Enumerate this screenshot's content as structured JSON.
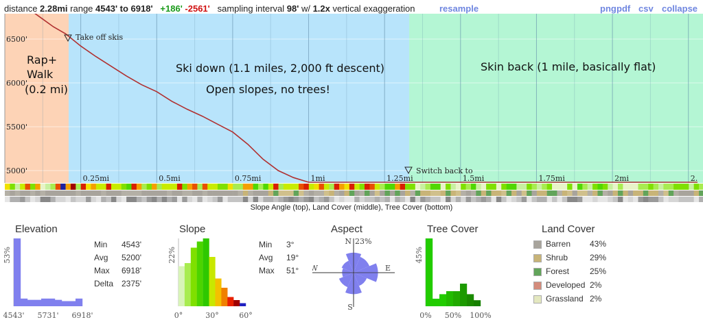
{
  "header": {
    "distance_label": "distance",
    "distance": "2.28mi",
    "range_label": "range",
    "range": "4543' to 6918'",
    "gain": "+186'",
    "loss": "-2561'",
    "sampling_label": "sampling interval",
    "sampling": "98'",
    "w_label": "w/",
    "exaggeration": "1.2x",
    "exaggeration_label": "vertical exaggeration",
    "resample": "resample",
    "png": "png",
    "pdf": "pdf",
    "csv": "csv",
    "collapse": "collapse"
  },
  "annotations": {
    "rap_line1": "Rap+",
    "rap_line2": "Walk",
    "rap_line3": "(0.2 mi)",
    "ski_line1": "Ski down (1.1 miles, 2,000 ft descent)",
    "ski_line2": "Open slopes, no trees!",
    "skin": "Skin back (1 mile, basically flat)",
    "marker1": "Take off skis",
    "marker2": "Switch back to"
  },
  "caption": "Slope Angle (top), Land Cover (middle), Tree Cover (bottom)",
  "colors": {
    "rap_zone": "#fdd3b6",
    "ski_zone": "#b8e4fb",
    "skin_zone": "#b4f6d4",
    "profile_line": "#b03030",
    "hist_blue": "#8080ee",
    "tree_green": "#22cc00"
  },
  "chart_data": [
    {
      "type": "line",
      "xlabel": "",
      "ylabel": "",
      "x_ticks": [
        "0.25mi",
        "0.5mi",
        "0.75mi",
        "1mi",
        "1.25mi",
        "1.5mi",
        "1.75mi",
        "2mi",
        "2."
      ],
      "y_ticks": [
        "6500'",
        "6000'",
        "5500'",
        "5000'"
      ],
      "ylim": [
        4543,
        6918
      ],
      "xlim": [
        0,
        2.28
      ],
      "series": [
        {
          "x": [
            0,
            0.04,
            0.08,
            0.12,
            0.16,
            0.2,
            0.25,
            0.3,
            0.35,
            0.4,
            0.45,
            0.5,
            0.55,
            0.6,
            0.65,
            0.7,
            0.75,
            0.8,
            0.85,
            0.9,
            0.95,
            1.0,
            1.05,
            1.1,
            1.15,
            1.2,
            1.25,
            1.3,
            1.35,
            1.4,
            1.45,
            1.5,
            1.55,
            1.6,
            1.65,
            1.7,
            1.75,
            1.8,
            1.85,
            1.9,
            1.95,
            2.0,
            2.05,
            2.1,
            2.15,
            2.2,
            2.25,
            2.28
          ],
          "values": [
            6918,
            6905,
            6840,
            6740,
            6640,
            6560,
            6420,
            6300,
            6190,
            6080,
            5980,
            5900,
            5790,
            5700,
            5620,
            5530,
            5440,
            5300,
            5130,
            5000,
            4920,
            4850,
            4800,
            4760,
            4720,
            4690,
            4670,
            4690,
            4700,
            4640,
            4590,
            4560,
            4570,
            4590,
            4630,
            4670,
            4690,
            4690,
            4675,
            4665,
            4660,
            4650,
            4620,
            4600,
            4590,
            4580,
            4560,
            4543
          ]
        }
      ]
    },
    {
      "type": "bar",
      "title": "Elevation",
      "ylabel": "53%",
      "x_ticks": [
        "4543'",
        "5731'",
        "6918'"
      ],
      "values": [
        53,
        6,
        5,
        5,
        6,
        6,
        5,
        4,
        4,
        6
      ]
    },
    {
      "type": "bar",
      "title": "Slope",
      "ylabel": "22%",
      "x_ticks": [
        "0°",
        "30°",
        "60°"
      ],
      "values": [
        13,
        14,
        19,
        21,
        22,
        16,
        9,
        6,
        3,
        2,
        1
      ]
    },
    {
      "type": "radar",
      "title": "Aspect",
      "max_label": "23%",
      "directions": [
        "N",
        "NE",
        "E",
        "SE",
        "S",
        "SW",
        "W",
        "NW"
      ],
      "values": [
        14,
        12,
        17,
        10,
        15,
        11,
        8,
        9
      ]
    },
    {
      "type": "bar",
      "title": "Tree Cover",
      "ylabel": "45%",
      "x_ticks": [
        "0%",
        "50%",
        "100%"
      ],
      "values": [
        45,
        5,
        8,
        10,
        10,
        15,
        8,
        4
      ]
    }
  ],
  "elevation_stats": [
    {
      "label": "Min",
      "value": "4543'"
    },
    {
      "label": "Avg",
      "value": "5200'"
    },
    {
      "label": "Max",
      "value": "6918'"
    },
    {
      "label": "Delta",
      "value": "2375'"
    }
  ],
  "slope_stats": [
    {
      "label": "Min",
      "value": "3°"
    },
    {
      "label": "Avg",
      "value": "19°"
    },
    {
      "label": "Max",
      "value": "51°"
    }
  ],
  "land_cover": {
    "title": "Land Cover",
    "items": [
      {
        "name": "Barren",
        "pct": "43%",
        "color": "#a8a49c"
      },
      {
        "name": "Shrub",
        "pct": "29%",
        "color": "#c8b478"
      },
      {
        "name": "Forest",
        "pct": "25%",
        "color": "#62a45a"
      },
      {
        "name": "Developed",
        "pct": "2%",
        "color": "#d48c7c"
      },
      {
        "name": "Grassland",
        "pct": "2%",
        "color": "#e4e8c0"
      }
    ]
  }
}
